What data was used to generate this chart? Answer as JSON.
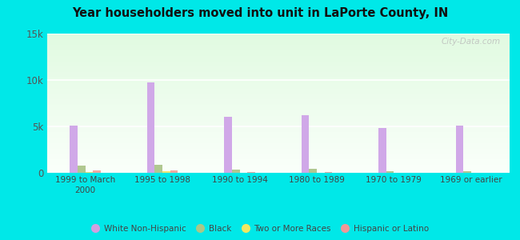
{
  "title": "Year householders moved into unit in LaPorte County, IN",
  "categories": [
    "1999 to March\n2000",
    "1995 to 1998",
    "1990 to 1994",
    "1980 to 1989",
    "1970 to 1979",
    "1969 or earlier"
  ],
  "series": {
    "White Non-Hispanic": [
      5100,
      9700,
      6000,
      6200,
      4800,
      5100
    ],
    "Black": [
      800,
      900,
      350,
      450,
      200,
      150
    ],
    "Two or More Races": [
      50,
      200,
      30,
      30,
      30,
      30
    ],
    "Hispanic or Latino": [
      220,
      300,
      60,
      60,
      40,
      40
    ]
  },
  "colors": {
    "White Non-Hispanic": "#d0a8e8",
    "Black": "#b0c890",
    "Two or More Races": "#f0e870",
    "Hispanic or Latino": "#f0a8a0"
  },
  "legend_colors": {
    "White Non-Hispanic": "#d0a0e0",
    "Black": "#a8c888",
    "Two or More Races": "#f0e860",
    "Hispanic or Latino": "#f09898"
  },
  "ylim": [
    0,
    15000
  ],
  "yticks": [
    0,
    5000,
    10000,
    15000
  ],
  "ytick_labels": [
    "0",
    "5k",
    "10k",
    "15k"
  ],
  "outer_bg": "#00e8e8",
  "bar_width": 0.1,
  "watermark": "City-Data.com"
}
